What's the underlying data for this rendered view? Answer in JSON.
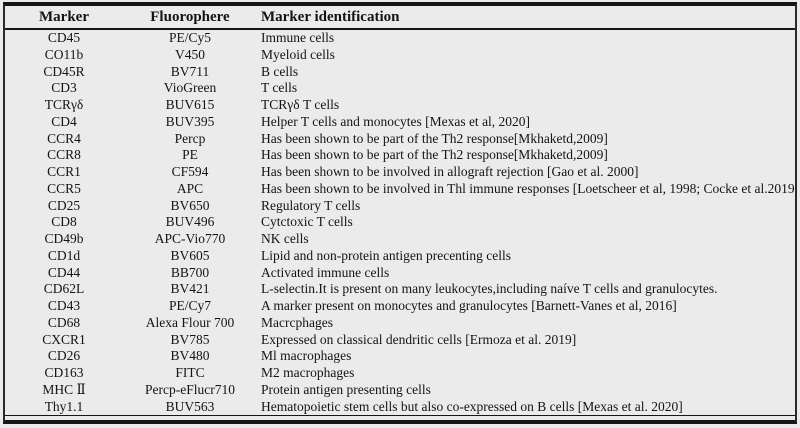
{
  "colors": {
    "background": "#ebebeb",
    "border": "#161616",
    "text": "#141414"
  },
  "table": {
    "columns": [
      "Marker",
      "Fluorophere",
      "Marker identification"
    ],
    "rows": [
      [
        "CD45",
        "PE/Cy5",
        "Immune cells"
      ],
      [
        "CO11b",
        "V450",
        "Myeloid cells"
      ],
      [
        "CD45R",
        "BV711",
        "B cells"
      ],
      [
        "CD3",
        "VioGreen",
        "T cells"
      ],
      [
        "TCRγδ",
        "BUV615",
        "TCRγδ T cells"
      ],
      [
        "CD4",
        "BUV395",
        "Helper T cells and monocytes [Mexas et al, 2020]"
      ],
      [
        "CCR4",
        "Percp",
        "Has been shown to be part of the Th2 response[Mkhaketd,2009]"
      ],
      [
        "CCR8",
        "PE",
        "Has been shown to be part of the Th2 response[Mkhaketd,2009]"
      ],
      [
        "CCR1",
        "CF594",
        "Has been shown to be involved in allograft rejection [Gao et al. 2000]"
      ],
      [
        "CCR5",
        "APC",
        "Has been shown to be involved in Thl immune responses [Loetscheer et al, 1998; Cocke et al.2019]"
      ],
      [
        "CD25",
        "BV650",
        "Regulatory T cells"
      ],
      [
        "CD8",
        "BUV496",
        "Cytctoxic T cells"
      ],
      [
        "CD49b",
        "APC-Vio770",
        "NK cells"
      ],
      [
        "CD1d",
        "BV605",
        "Lipid and non-protein antigen precenting cells"
      ],
      [
        "CD44",
        "BB700",
        "Activated immune cells"
      ],
      [
        "CD62L",
        "BV421",
        "L-selectin.It is present on many leukocytes,including naíve T cells and granulocytes."
      ],
      [
        "CD43",
        "PE/Cy7",
        "A marker present on monocytes and granulocytes [Barnett-Vanes et al, 2016]"
      ],
      [
        "CD68",
        "Alexa Flour 700",
        "Macrcphages"
      ],
      [
        "CXCR1",
        "BV785",
        "Expressed on classical dendritic cells [Ermoza et al. 2019]"
      ],
      [
        "CD26",
        "BV480",
        "Ml macrophages"
      ],
      [
        "CD163",
        "FITC",
        "M2 macrophages"
      ],
      [
        "MHC Ⅱ",
        "Percp-eFlucr710",
        "Protein antigen presenting cells"
      ],
      [
        "Thy1.1",
        "BUV563",
        "Hematopoietic stem cells but also co-expressed on B cells [Mexas et al. 2020]"
      ]
    ]
  }
}
